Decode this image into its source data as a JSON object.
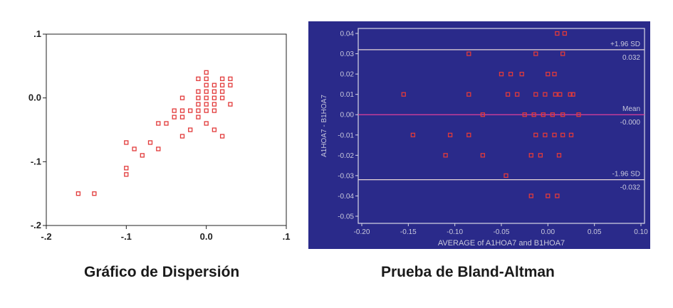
{
  "captions": {
    "scatter": "Gráfico de Dispersión",
    "bland_altman": "Prueba de Bland-Altman"
  },
  "colors": {
    "marker": "#e23a3a",
    "ba_background": "#2a2a8a",
    "ba_frame": "#d8d8e6",
    "ba_limit_line": "#e8d8d8",
    "ba_mean_line": "#e0409a",
    "ba_text": "#c8c8dc"
  },
  "chart_data": [
    {
      "type": "scatter",
      "title": "",
      "xlabel": "",
      "ylabel": "",
      "xlim": [
        -0.2,
        0.1
      ],
      "ylim": [
        -0.2,
        0.1
      ],
      "grid": false,
      "xticks": [
        {
          "value": -0.2,
          "label": "-.2"
        },
        {
          "value": -0.1,
          "label": "-.1"
        },
        {
          "value": 0.0,
          "label": "0.0"
        },
        {
          "value": 0.1,
          "label": ".1"
        }
      ],
      "yticks": [
        {
          "value": 0.1,
          "label": ".1"
        },
        {
          "value": 0.0,
          "label": "0.0"
        },
        {
          "value": -0.1,
          "label": "-.1"
        },
        {
          "value": -0.2,
          "label": "-.2"
        }
      ],
      "points": [
        [
          -0.16,
          -0.15
        ],
        [
          -0.14,
          -0.15
        ],
        [
          -0.1,
          -0.07
        ],
        [
          -0.1,
          -0.11
        ],
        [
          -0.1,
          -0.12
        ],
        [
          -0.09,
          -0.08
        ],
        [
          -0.08,
          -0.09
        ],
        [
          -0.07,
          -0.07
        ],
        [
          -0.06,
          -0.08
        ],
        [
          -0.06,
          -0.04
        ],
        [
          -0.05,
          -0.04
        ],
        [
          -0.04,
          -0.02
        ],
        [
          -0.04,
          -0.03
        ],
        [
          -0.03,
          0.0
        ],
        [
          -0.03,
          -0.02
        ],
        [
          -0.03,
          -0.03
        ],
        [
          -0.03,
          -0.06
        ],
        [
          -0.02,
          -0.02
        ],
        [
          -0.02,
          -0.05
        ],
        [
          -0.01,
          0.03
        ],
        [
          -0.01,
          0.01
        ],
        [
          -0.01,
          0.0
        ],
        [
          -0.01,
          -0.01
        ],
        [
          -0.01,
          -0.02
        ],
        [
          -0.01,
          -0.03
        ],
        [
          0.0,
          0.04
        ],
        [
          0.0,
          0.03
        ],
        [
          0.0,
          0.02
        ],
        [
          0.0,
          0.01
        ],
        [
          0.0,
          0.0
        ],
        [
          0.0,
          -0.01
        ],
        [
          0.0,
          -0.02
        ],
        [
          0.0,
          -0.04
        ],
        [
          0.01,
          0.02
        ],
        [
          0.01,
          0.01
        ],
        [
          0.01,
          0.0
        ],
        [
          0.01,
          -0.01
        ],
        [
          0.01,
          -0.02
        ],
        [
          0.01,
          -0.05
        ],
        [
          0.02,
          0.03
        ],
        [
          0.02,
          0.02
        ],
        [
          0.02,
          0.01
        ],
        [
          0.02,
          0.0
        ],
        [
          0.02,
          -0.06
        ],
        [
          0.03,
          0.03
        ],
        [
          0.03,
          0.02
        ],
        [
          0.03,
          -0.01
        ]
      ]
    },
    {
      "type": "scatter",
      "title": "",
      "xlabel": "AVERAGE of A1HOA7 and B1HOA7",
      "ylabel": "A1HOA7 - B1HOA7",
      "xlim": [
        -0.2,
        0.1
      ],
      "ylim": [
        -0.05,
        0.04
      ],
      "grid": false,
      "xticks": [
        {
          "value": -0.2,
          "label": "-0.20"
        },
        {
          "value": -0.15,
          "label": "-0.15"
        },
        {
          "value": -0.1,
          "label": "-0.10"
        },
        {
          "value": -0.05,
          "label": "-0.05"
        },
        {
          "value": 0.0,
          "label": "0.00"
        },
        {
          "value": 0.05,
          "label": "0.05"
        },
        {
          "value": 0.1,
          "label": "0.10"
        }
      ],
      "yticks": [
        {
          "value": 0.04,
          "label": "0.04"
        },
        {
          "value": 0.03,
          "label": "0.03"
        },
        {
          "value": 0.02,
          "label": "0.02"
        },
        {
          "value": 0.01,
          "label": "0.01"
        },
        {
          "value": 0.0,
          "label": "0.00"
        },
        {
          "value": -0.01,
          "label": "-0.01"
        },
        {
          "value": -0.02,
          "label": "-0.02"
        },
        {
          "value": -0.03,
          "label": "-0.03"
        },
        {
          "value": -0.04,
          "label": "-0.04"
        },
        {
          "value": -0.05,
          "label": "-0.05"
        }
      ],
      "reference_lines": [
        {
          "value": 0.032,
          "label": "+1.96 SD",
          "value_label": "0.032",
          "kind": "limit"
        },
        {
          "value": 0.0,
          "label": "Mean",
          "value_label": "-0.000",
          "kind": "mean"
        },
        {
          "value": -0.032,
          "label": "-1.96 SD",
          "value_label": "-0.032",
          "kind": "limit"
        }
      ],
      "points": [
        [
          0.01,
          0.04
        ],
        [
          0.018,
          0.04
        ],
        [
          -0.085,
          0.03
        ],
        [
          -0.013,
          0.03
        ],
        [
          0.016,
          0.03
        ],
        [
          -0.05,
          0.02
        ],
        [
          -0.04,
          0.02
        ],
        [
          -0.028,
          0.02
        ],
        [
          0.0,
          0.02
        ],
        [
          0.007,
          0.02
        ],
        [
          -0.155,
          0.01
        ],
        [
          -0.085,
          0.01
        ],
        [
          -0.043,
          0.01
        ],
        [
          -0.033,
          0.01
        ],
        [
          -0.013,
          0.01
        ],
        [
          -0.003,
          0.01
        ],
        [
          0.008,
          0.01
        ],
        [
          0.013,
          0.01
        ],
        [
          0.024,
          0.01
        ],
        [
          0.027,
          0.01
        ],
        [
          -0.07,
          0.0
        ],
        [
          -0.025,
          0.0
        ],
        [
          -0.015,
          0.0
        ],
        [
          -0.005,
          0.0
        ],
        [
          0.005,
          0.0
        ],
        [
          0.016,
          0.0
        ],
        [
          0.033,
          0.0
        ],
        [
          -0.145,
          -0.01
        ],
        [
          -0.105,
          -0.01
        ],
        [
          -0.085,
          -0.01
        ],
        [
          -0.013,
          -0.01
        ],
        [
          -0.003,
          -0.01
        ],
        [
          0.007,
          -0.01
        ],
        [
          0.016,
          -0.01
        ],
        [
          0.025,
          -0.01
        ],
        [
          -0.11,
          -0.02
        ],
        [
          -0.07,
          -0.02
        ],
        [
          -0.018,
          -0.02
        ],
        [
          -0.008,
          -0.02
        ],
        [
          0.012,
          -0.02
        ],
        [
          -0.045,
          -0.03
        ],
        [
          -0.018,
          -0.04
        ],
        [
          0.0,
          -0.04
        ],
        [
          0.01,
          -0.04
        ]
      ]
    }
  ]
}
